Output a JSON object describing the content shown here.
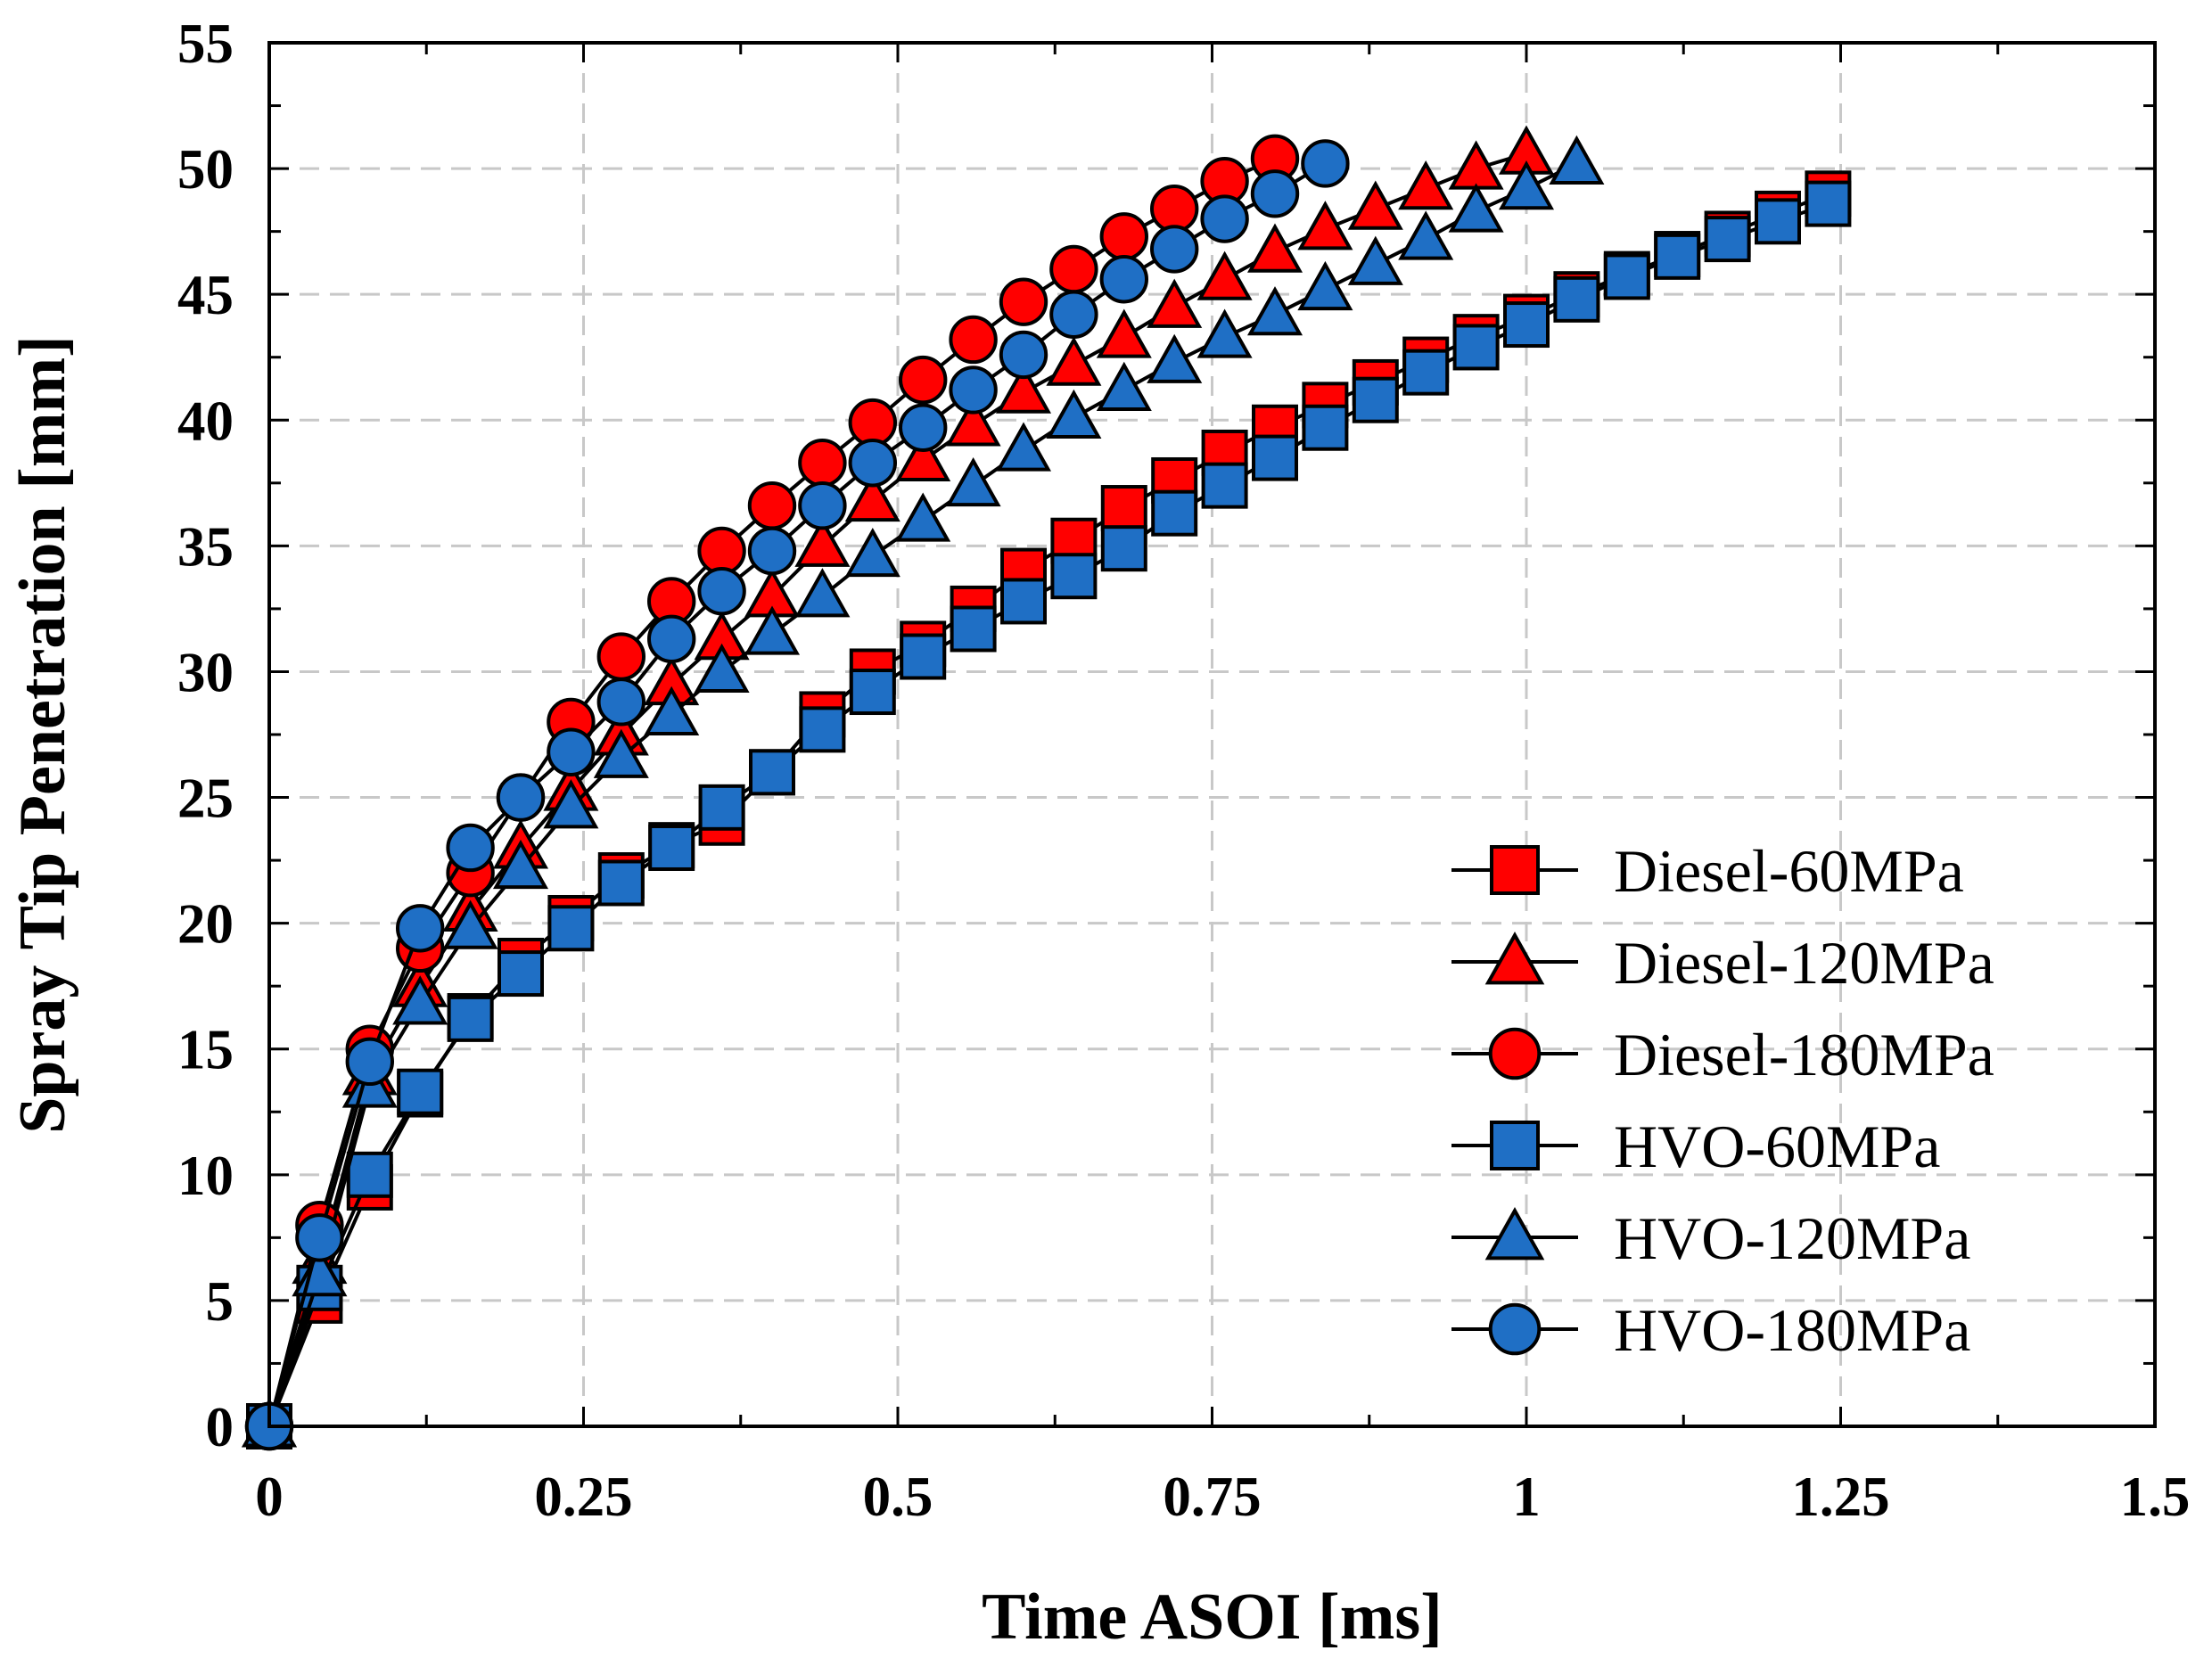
{
  "chart_data": {
    "type": "line",
    "title": "",
    "xlabel": "Time ASOI [ms]",
    "ylabel": "Spray Tip Penetration [mm]",
    "xlim": [
      0,
      1.5
    ],
    "ylim": [
      0,
      55
    ],
    "xticks": [
      0,
      0.25,
      0.5,
      0.75,
      1,
      1.25,
      1.5
    ],
    "xtick_labels": [
      "0",
      "0.25",
      "0.5",
      "0.75",
      "1",
      "1.25",
      "1.5"
    ],
    "yticks": [
      0,
      5,
      10,
      15,
      20,
      25,
      30,
      35,
      40,
      45,
      50,
      55
    ],
    "ytick_labels": [
      "0",
      "5",
      "10",
      "15",
      "20",
      "25",
      "30",
      "35",
      "40",
      "45",
      "50",
      "55"
    ],
    "grid": true,
    "legend_position": "bottom-right",
    "series": [
      {
        "name": "Diesel-60MPa",
        "marker": "square",
        "color": "#ff0000",
        "x": [
          0,
          0.04,
          0.08,
          0.12,
          0.16,
          0.2,
          0.24,
          0.28,
          0.32,
          0.36,
          0.4,
          0.44,
          0.48,
          0.52,
          0.56,
          0.6,
          0.64,
          0.68,
          0.72,
          0.76,
          0.8,
          0.84,
          0.88,
          0.92,
          0.96,
          1.0,
          1.04,
          1.08,
          1.12,
          1.16,
          1.2,
          1.24
        ],
        "y": [
          0,
          5.0,
          9.5,
          13.2,
          16.3,
          18.5,
          20.2,
          21.9,
          23.1,
          24.0,
          26.0,
          28.3,
          30.0,
          31.1,
          32.5,
          34.0,
          35.2,
          36.5,
          37.6,
          38.7,
          39.7,
          40.6,
          41.5,
          42.4,
          43.3,
          44.1,
          45.0,
          45.8,
          46.6,
          47.4,
          48.2,
          49.0
        ]
      },
      {
        "name": "Diesel-120MPa",
        "marker": "triangle",
        "color": "#ff0000",
        "x": [
          0,
          0.04,
          0.08,
          0.12,
          0.16,
          0.2,
          0.24,
          0.28,
          0.32,
          0.36,
          0.4,
          0.44,
          0.48,
          0.52,
          0.56,
          0.6,
          0.64,
          0.68,
          0.72,
          0.76,
          0.8,
          0.84,
          0.88,
          0.92,
          0.96,
          1.0
        ],
        "y": [
          0,
          6.5,
          14.0,
          17.5,
          20.5,
          23.0,
          25.3,
          27.5,
          29.5,
          31.3,
          33.0,
          35.0,
          36.8,
          38.4,
          39.8,
          41.1,
          42.2,
          43.3,
          44.5,
          45.6,
          46.7,
          47.6,
          48.4,
          49.2,
          50.0,
          50.6
        ]
      },
      {
        "name": "Diesel-180MPa",
        "marker": "circle",
        "color": "#ff0000",
        "x": [
          0,
          0.04,
          0.08,
          0.12,
          0.16,
          0.2,
          0.24,
          0.28,
          0.32,
          0.36,
          0.4,
          0.44,
          0.48,
          0.52,
          0.56,
          0.6,
          0.64,
          0.68,
          0.72,
          0.76,
          0.8
        ],
        "y": [
          0,
          8.0,
          15.0,
          19.0,
          22.0,
          25.0,
          28.0,
          30.6,
          32.8,
          34.8,
          36.6,
          38.3,
          39.9,
          41.6,
          43.2,
          44.7,
          46.0,
          47.3,
          48.4,
          49.5,
          50.4
        ]
      },
      {
        "name": "HVO-60MPa",
        "marker": "square",
        "color": "#1f6fc5",
        "x": [
          0,
          0.04,
          0.08,
          0.12,
          0.16,
          0.2,
          0.24,
          0.28,
          0.32,
          0.36,
          0.4,
          0.44,
          0.48,
          0.52,
          0.56,
          0.6,
          0.64,
          0.68,
          0.72,
          0.76,
          0.8,
          0.84,
          0.88,
          0.92,
          0.96,
          1.0,
          1.04,
          1.08,
          1.12,
          1.16,
          1.2,
          1.24
        ],
        "y": [
          0,
          5.5,
          10.0,
          13.3,
          16.2,
          18.0,
          19.8,
          21.6,
          23.0,
          24.6,
          26.0,
          27.7,
          29.2,
          30.6,
          31.7,
          32.8,
          33.8,
          34.9,
          36.3,
          37.4,
          38.5,
          39.7,
          40.8,
          41.9,
          42.9,
          43.8,
          44.8,
          45.7,
          46.5,
          47.2,
          47.9,
          48.6
        ]
      },
      {
        "name": "HVO-120MPa",
        "marker": "triangle",
        "color": "#1f6fc5",
        "x": [
          0,
          0.04,
          0.08,
          0.12,
          0.16,
          0.2,
          0.24,
          0.28,
          0.32,
          0.36,
          0.4,
          0.44,
          0.48,
          0.52,
          0.56,
          0.6,
          0.64,
          0.68,
          0.72,
          0.76,
          0.8,
          0.84,
          0.88,
          0.92,
          0.96,
          1.0,
          1.04
        ],
        "y": [
          0,
          6.0,
          13.5,
          16.8,
          19.8,
          22.2,
          24.6,
          26.6,
          28.3,
          30.0,
          31.5,
          33.0,
          34.6,
          36.0,
          37.4,
          38.8,
          40.1,
          41.2,
          42.3,
          43.3,
          44.2,
          45.2,
          46.2,
          47.2,
          48.3,
          49.2,
          50.2
        ]
      },
      {
        "name": "HVO-180MPa",
        "marker": "circle",
        "color": "#1f6fc5",
        "x": [
          0,
          0.04,
          0.08,
          0.12,
          0.16,
          0.2,
          0.24,
          0.28,
          0.32,
          0.36,
          0.4,
          0.44,
          0.48,
          0.52,
          0.56,
          0.6,
          0.64,
          0.68,
          0.72,
          0.76,
          0.8,
          0.84
        ],
        "y": [
          0,
          7.5,
          14.5,
          19.8,
          23.0,
          25.0,
          26.8,
          28.8,
          31.3,
          33.2,
          34.8,
          36.6,
          38.3,
          39.7,
          41.2,
          42.6,
          44.2,
          45.6,
          46.8,
          48.0,
          49.0,
          50.2
        ]
      }
    ]
  }
}
